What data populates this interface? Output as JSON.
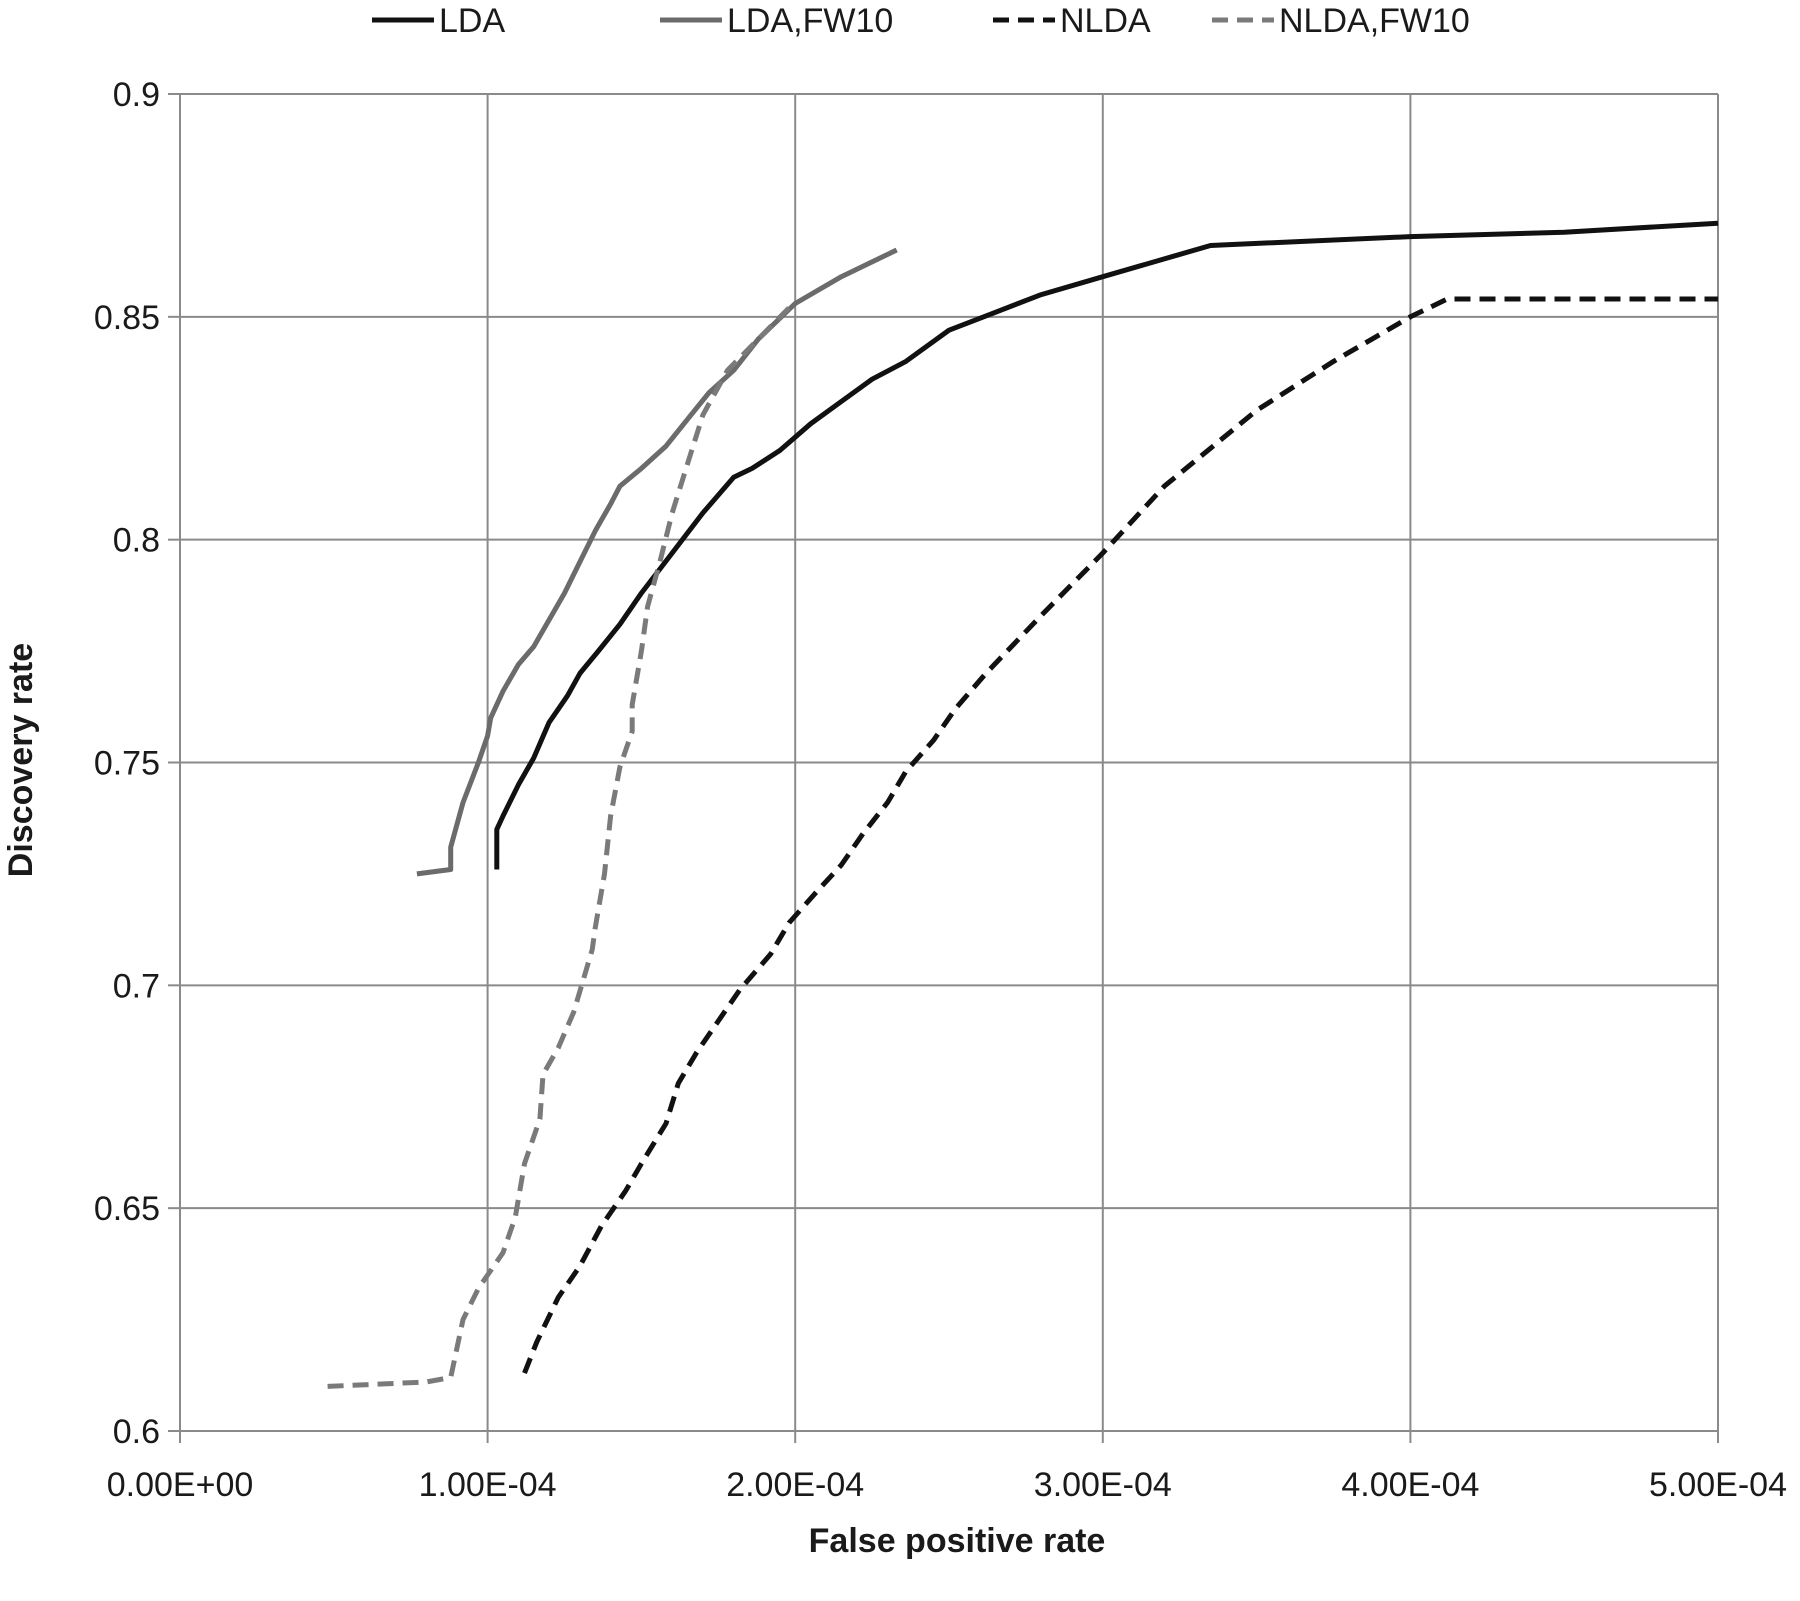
{
  "chart_data": {
    "type": "line",
    "title": "",
    "xlabel": "False positive rate",
    "ylabel": "Discovery rate",
    "xlim": [
      0,
      0.0005
    ],
    "ylim": [
      0.6,
      0.9
    ],
    "grid": true,
    "legend_position": "top",
    "x_ticks": [
      {
        "value": 0,
        "label": "0.00E+00"
      },
      {
        "value": 0.0001,
        "label": "1.00E-04"
      },
      {
        "value": 0.0002,
        "label": "2.00E-04"
      },
      {
        "value": 0.0003,
        "label": "3.00E-04"
      },
      {
        "value": 0.0004,
        "label": "4.00E-04"
      },
      {
        "value": 0.0005,
        "label": "5.00E-04"
      }
    ],
    "y_ticks": [
      {
        "value": 0.6,
        "label": "0.6"
      },
      {
        "value": 0.65,
        "label": "0.65"
      },
      {
        "value": 0.7,
        "label": "0.7"
      },
      {
        "value": 0.75,
        "label": "0.75"
      },
      {
        "value": 0.8,
        "label": "0.8"
      },
      {
        "value": 0.85,
        "label": "0.85"
      },
      {
        "value": 0.9,
        "label": "0.9"
      }
    ],
    "series": [
      {
        "name": "LDA",
        "color": "#111111",
        "dash": "solid",
        "points": [
          [
            0.000103,
            0.726
          ],
          [
            0.000103,
            0.735
          ],
          [
            0.000105,
            0.738
          ],
          [
            0.00011,
            0.745
          ],
          [
            0.000115,
            0.751
          ],
          [
            0.00012,
            0.759
          ],
          [
            0.000126,
            0.765
          ],
          [
            0.00013,
            0.77
          ],
          [
            0.000136,
            0.775
          ],
          [
            0.000143,
            0.781
          ],
          [
            0.00015,
            0.788
          ],
          [
            0.00016,
            0.797
          ],
          [
            0.00017,
            0.806
          ],
          [
            0.00018,
            0.814
          ],
          [
            0.000186,
            0.816
          ],
          [
            0.000195,
            0.82
          ],
          [
            0.000205,
            0.826
          ],
          [
            0.000215,
            0.831
          ],
          [
            0.000225,
            0.836
          ],
          [
            0.000236,
            0.84
          ],
          [
            0.00025,
            0.847
          ],
          [
            0.000265,
            0.851
          ],
          [
            0.00028,
            0.855
          ],
          [
            0.0003,
            0.859
          ],
          [
            0.000335,
            0.866
          ],
          [
            0.0004,
            0.868
          ],
          [
            0.00045,
            0.869
          ],
          [
            0.0005,
            0.871
          ]
        ]
      },
      {
        "name": "LDA,FW10",
        "color": "#6b6b6b",
        "dash": "solid",
        "points": [
          [
            7.7e-05,
            0.725
          ],
          [
            8.8e-05,
            0.726
          ],
          [
            8.8e-05,
            0.731
          ],
          [
            9.2e-05,
            0.741
          ],
          [
            9.7e-05,
            0.75
          ],
          [
            0.0001,
            0.756
          ],
          [
            0.000101,
            0.76
          ],
          [
            0.000105,
            0.766
          ],
          [
            0.00011,
            0.772
          ],
          [
            0.000115,
            0.776
          ],
          [
            0.00012,
            0.782
          ],
          [
            0.000125,
            0.788
          ],
          [
            0.00013,
            0.795
          ],
          [
            0.000135,
            0.802
          ],
          [
            0.00014,
            0.808
          ],
          [
            0.000143,
            0.812
          ],
          [
            0.00015,
            0.816
          ],
          [
            0.000158,
            0.821
          ],
          [
            0.000165,
            0.827
          ],
          [
            0.000172,
            0.833
          ],
          [
            0.00018,
            0.838
          ],
          [
            0.000188,
            0.845
          ],
          [
            0.0002,
            0.853
          ],
          [
            0.000215,
            0.859
          ],
          [
            0.000233,
            0.865
          ]
        ]
      },
      {
        "name": "NLDA",
        "color": "#111111",
        "dash": "dashed",
        "points": [
          [
            0.000112,
            0.613
          ],
          [
            0.000116,
            0.62
          ],
          [
            0.000123,
            0.63
          ],
          [
            0.00013,
            0.637
          ],
          [
            0.000137,
            0.646
          ],
          [
            0.000145,
            0.654
          ],
          [
            0.00015,
            0.66
          ],
          [
            0.000158,
            0.669
          ],
          [
            0.000162,
            0.678
          ],
          [
            0.000168,
            0.685
          ],
          [
            0.000175,
            0.692
          ],
          [
            0.000182,
            0.699
          ],
          [
            0.000192,
            0.707
          ],
          [
            0.000198,
            0.714
          ],
          [
            0.000207,
            0.721
          ],
          [
            0.000215,
            0.727
          ],
          [
            0.000222,
            0.734
          ],
          [
            0.00023,
            0.741
          ],
          [
            0.000236,
            0.748
          ],
          [
            0.000245,
            0.755
          ],
          [
            0.000252,
            0.762
          ],
          [
            0.000262,
            0.77
          ],
          [
            0.00028,
            0.783
          ],
          [
            0.0003,
            0.797
          ],
          [
            0.00032,
            0.812
          ],
          [
            0.00035,
            0.829
          ],
          [
            0.000375,
            0.84
          ],
          [
            0.0004,
            0.85
          ],
          [
            0.000412,
            0.854
          ],
          [
            0.0005,
            0.854
          ]
        ]
      },
      {
        "name": "NLDA,FW10",
        "color": "#7a7a7a",
        "dash": "dashed",
        "points": [
          [
            4.8e-05,
            0.61
          ],
          [
            8e-05,
            0.611
          ],
          [
            8.8e-05,
            0.612
          ],
          [
            9.2e-05,
            0.625
          ],
          [
            9.7e-05,
            0.632
          ],
          [
            0.000105,
            0.64
          ],
          [
            0.000109,
            0.648
          ],
          [
            0.000112,
            0.66
          ],
          [
            0.000117,
            0.67
          ],
          [
            0.000118,
            0.68
          ],
          [
            0.000123,
            0.686
          ],
          [
            0.000128,
            0.694
          ],
          [
            0.000134,
            0.708
          ],
          [
            0.000135,
            0.713
          ],
          [
            0.000138,
            0.725
          ],
          [
            0.00014,
            0.738
          ],
          [
            0.000143,
            0.749
          ],
          [
            0.000147,
            0.757
          ],
          [
            0.000147,
            0.763
          ],
          [
            0.00015,
            0.775
          ],
          [
            0.000152,
            0.785
          ],
          [
            0.000156,
            0.795
          ],
          [
            0.00016,
            0.806
          ],
          [
            0.000165,
            0.817
          ],
          [
            0.00017,
            0.828
          ],
          [
            0.000178,
            0.838
          ],
          [
            0.000188,
            0.845
          ],
          [
            0.000198,
            0.852
          ]
        ]
      }
    ]
  }
}
